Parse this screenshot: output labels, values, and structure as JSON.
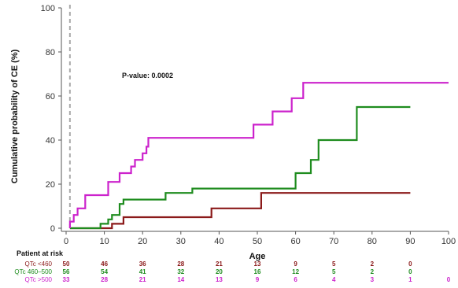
{
  "chart_data": {
    "type": "line",
    "step": true,
    "ylabel": "Cumulative probability of CE (%)",
    "xlabel": "Age",
    "xlim": [
      0,
      100
    ],
    "ylim": [
      0,
      100
    ],
    "x_ticks": [
      0,
      10,
      20,
      30,
      40,
      50,
      60,
      70,
      80,
      90,
      100
    ],
    "y_ticks": [
      0,
      20,
      40,
      60,
      80,
      100
    ],
    "grid": false,
    "annotation": "P-value: 0.0002",
    "reference_line_x": 1,
    "series": [
      {
        "name": "QTc <460",
        "color": "#8b1a1a",
        "points": [
          [
            1,
            0
          ],
          [
            12,
            0
          ],
          [
            12,
            2
          ],
          [
            15,
            2
          ],
          [
            15,
            5
          ],
          [
            38,
            5
          ],
          [
            38,
            9
          ],
          [
            51,
            9
          ],
          [
            51,
            16
          ],
          [
            90,
            16
          ]
        ]
      },
      {
        "name": "QTc 460–500",
        "color": "#1e8c1e",
        "points": [
          [
            1,
            0
          ],
          [
            9,
            0
          ],
          [
            9,
            2
          ],
          [
            11,
            2
          ],
          [
            11,
            4
          ],
          [
            12,
            4
          ],
          [
            12,
            6
          ],
          [
            14,
            6
          ],
          [
            14,
            11
          ],
          [
            15,
            11
          ],
          [
            15,
            13
          ],
          [
            26,
            13
          ],
          [
            26,
            16
          ],
          [
            33,
            16
          ],
          [
            33,
            18
          ],
          [
            60,
            18
          ],
          [
            60,
            25
          ],
          [
            64,
            25
          ],
          [
            64,
            31
          ],
          [
            66,
            31
          ],
          [
            66,
            40
          ],
          [
            76,
            40
          ],
          [
            76,
            55
          ],
          [
            90,
            55
          ]
        ]
      },
      {
        "name": "QTc >500",
        "color": "#cc22cc",
        "points": [
          [
            1,
            0
          ],
          [
            1,
            3
          ],
          [
            2,
            3
          ],
          [
            2,
            6
          ],
          [
            3,
            6
          ],
          [
            3,
            9
          ],
          [
            5,
            9
          ],
          [
            5,
            15
          ],
          [
            11,
            15
          ],
          [
            11,
            21
          ],
          [
            14,
            21
          ],
          [
            14,
            25
          ],
          [
            17,
            25
          ],
          [
            17,
            28
          ],
          [
            18,
            28
          ],
          [
            18,
            31
          ],
          [
            20,
            31
          ],
          [
            20,
            34
          ],
          [
            21,
            34
          ],
          [
            21,
            37
          ],
          [
            21.5,
            37
          ],
          [
            21.5,
            41
          ],
          [
            49,
            41
          ],
          [
            49,
            47
          ],
          [
            54,
            47
          ],
          [
            54,
            53
          ],
          [
            59,
            53
          ],
          [
            59,
            59
          ],
          [
            62,
            59
          ],
          [
            62,
            66
          ],
          [
            100,
            66
          ]
        ]
      }
    ]
  },
  "risk_table": {
    "title": "Patient at risk",
    "x_positions": [
      0,
      10,
      20,
      30,
      40,
      50,
      60,
      70,
      80,
      90,
      100
    ],
    "rows": [
      {
        "label": "QTc <460",
        "color": "#8b1a1a",
        "values": [
          "50",
          "46",
          "36",
          "28",
          "21",
          "13",
          "9",
          "5",
          "2",
          "0",
          ""
        ]
      },
      {
        "label": "QTc 460–500",
        "color": "#1e8c1e",
        "values": [
          "56",
          "54",
          "41",
          "32",
          "20",
          "16",
          "12",
          "5",
          "2",
          "0",
          ""
        ]
      },
      {
        "label": "QTc >500",
        "color": "#cc22cc",
        "values": [
          "33",
          "28",
          "21",
          "14",
          "13",
          "9",
          "6",
          "4",
          "3",
          "1",
          "0"
        ]
      }
    ]
  }
}
